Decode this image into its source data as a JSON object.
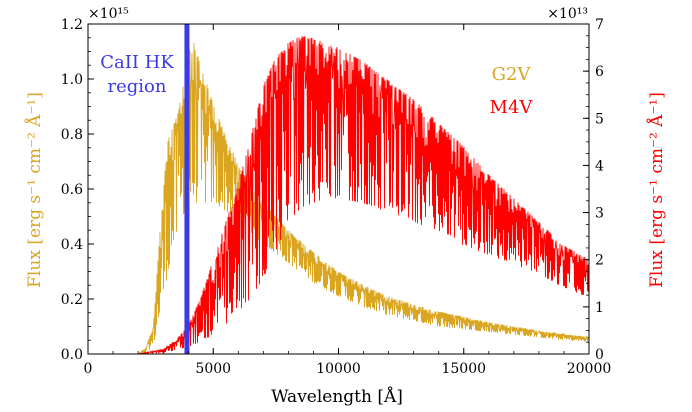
{
  "chart_data": {
    "type": "line",
    "xlabel": "Wavelength [Å]",
    "xlim": [
      0,
      20000
    ],
    "x_ticks": [
      "0",
      "5000",
      "10000",
      "15000",
      "20000"
    ],
    "x_tick_values": [
      0,
      5000,
      10000,
      15000,
      20000
    ],
    "y_left": {
      "label": "Flux [erg s⁻¹ cm⁻² Å⁻¹]",
      "multiplier": "×10¹⁵",
      "lim": [
        0,
        1.2
      ],
      "ticks": [
        "0.0",
        "0.2",
        "0.4",
        "0.6",
        "0.8",
        "1.0",
        "1.2"
      ],
      "tick_values": [
        0,
        0.2,
        0.4,
        0.6,
        0.8,
        1.0,
        1.2
      ],
      "color": "#daa520"
    },
    "y_right": {
      "label": "Flux [erg s⁻¹ cm⁻² Å⁻¹]",
      "multiplier": "×10¹³",
      "lim": [
        0,
        7
      ],
      "ticks": [
        "0",
        "1",
        "2",
        "3",
        "4",
        "5",
        "6",
        "7"
      ],
      "tick_values": [
        0,
        1,
        2,
        3,
        4,
        5,
        6,
        7
      ],
      "color": "#ff0000"
    },
    "series": [
      {
        "name": "G2V",
        "axis": "left",
        "color": "#daa520",
        "x": [
          0,
          2000,
          2300,
          2600,
          2800,
          3000,
          3200,
          3400,
          3600,
          3800,
          4000,
          4200,
          4500,
          5000,
          5500,
          6000,
          6500,
          7000,
          8000,
          9000,
          10000,
          11000,
          12000,
          13000,
          14000,
          15000,
          16000,
          17000,
          18000,
          19000,
          20000
        ],
        "y_upper": [
          0,
          0,
          0.02,
          0.1,
          0.35,
          0.6,
          0.78,
          0.83,
          0.88,
          0.98,
          1.15,
          1.14,
          1.05,
          0.91,
          0.79,
          0.69,
          0.61,
          0.55,
          0.45,
          0.37,
          0.3,
          0.25,
          0.21,
          0.18,
          0.155,
          0.135,
          0.115,
          0.1,
          0.085,
          0.072,
          0.062
        ],
        "y_lower": [
          0,
          0,
          0.0,
          0.03,
          0.1,
          0.2,
          0.3,
          0.38,
          0.45,
          0.5,
          0.55,
          0.55,
          0.55,
          0.55,
          0.52,
          0.48,
          0.44,
          0.4,
          0.33,
          0.26,
          0.21,
          0.17,
          0.14,
          0.12,
          0.1,
          0.09,
          0.08,
          0.07,
          0.06,
          0.05,
          0.045
        ]
      },
      {
        "name": "M4V",
        "axis": "right",
        "color": "#ff0000",
        "x": [
          0,
          2000,
          3000,
          3500,
          4000,
          4500,
          5000,
          5500,
          6000,
          6500,
          7000,
          7500,
          8000,
          8500,
          9000,
          9500,
          10000,
          11000,
          12000,
          13000,
          14000,
          15000,
          16000,
          17000,
          18000,
          19000,
          20000
        ],
        "y_upper": [
          0,
          0,
          0.1,
          0.3,
          0.6,
          1.2,
          2.0,
          2.8,
          3.6,
          4.6,
          5.7,
          6.3,
          6.6,
          6.75,
          6.7,
          6.6,
          6.5,
          6.2,
          5.8,
          5.4,
          4.9,
          4.4,
          3.8,
          3.3,
          2.8,
          2.3,
          2.0
        ],
        "y_lower": [
          0,
          0,
          0.02,
          0.08,
          0.15,
          0.25,
          0.4,
          0.6,
          0.85,
          1.2,
          1.6,
          2.2,
          2.8,
          3.1,
          3.2,
          3.3,
          3.3,
          3.2,
          3.0,
          2.8,
          2.6,
          2.3,
          2.1,
          1.9,
          1.7,
          1.4,
          1.2
        ]
      }
    ],
    "highlight": {
      "label_line1": "CaII HK",
      "label_line2": "region",
      "x": 3950,
      "color": "#3a3ae6"
    },
    "legend": {
      "placement": "top-right",
      "entries": [
        {
          "label": "G2V",
          "color": "#daa520"
        },
        {
          "label": "M4V",
          "color": "#ff0000"
        }
      ]
    },
    "grid": false
  }
}
